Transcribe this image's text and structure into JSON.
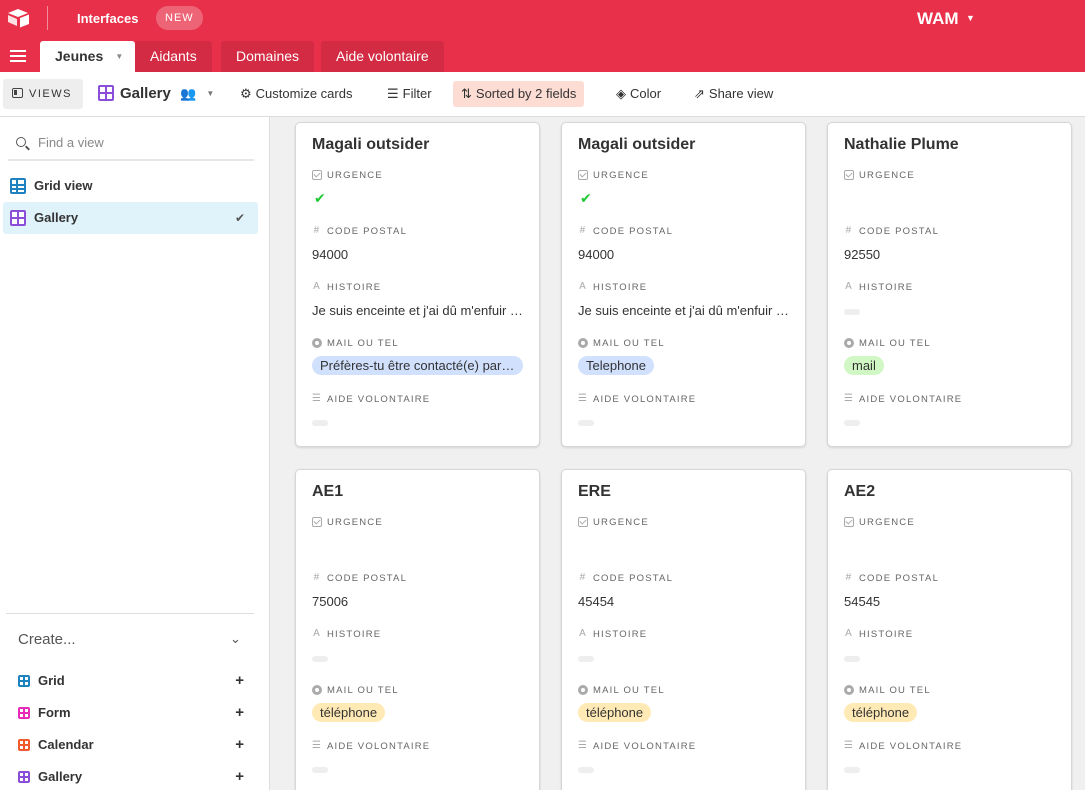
{
  "colors": {
    "brand": "#e8304a",
    "sorted_bg": "#fddcd4",
    "selected_view_bg": "#e0f3fb",
    "pill_blue": "#d0e0fd",
    "pill_green": "#d1f7c4",
    "pill_yellow": "#ffeab6"
  },
  "topbar": {
    "app_label": "Interfaces",
    "new_badge": "NEW",
    "base_name": "WAM"
  },
  "tabs": [
    {
      "label": "Jeunes"
    },
    {
      "label": "Aidants"
    },
    {
      "label": "Domaines"
    },
    {
      "label": "Aide volontaire"
    }
  ],
  "toolbar": {
    "views_label": "VIEWS",
    "current_view": "Gallery",
    "customize": "Customize cards",
    "filter": "Filter",
    "sorted": "Sorted by 2 fields",
    "color": "Color",
    "share": "Share view"
  },
  "sidebar": {
    "find_placeholder": "Find a view",
    "views": [
      {
        "label": "Grid view",
        "icon": "grid-view-icon"
      },
      {
        "label": "Gallery",
        "icon": "gallery-view-icon",
        "selected": true
      }
    ],
    "create_label": "Create...",
    "create_items": [
      {
        "label": "Grid",
        "color": "#1f82c0"
      },
      {
        "label": "Form",
        "color": "#e929ba"
      },
      {
        "label": "Calendar",
        "color": "#f05b2b"
      },
      {
        "label": "Gallery",
        "color": "#8a4ed9"
      }
    ]
  },
  "field_labels": {
    "urgence": "URGENCE",
    "code_postal": "CODE POSTAL",
    "histoire": "HISTOIRE",
    "mail_ou_tel": "MAIL OU TEL",
    "aide_volontaire": "AIDE VOLONTAIRE"
  },
  "cards": [
    {
      "title": "Magali outsider",
      "urgence": true,
      "code_postal": "94000",
      "histoire": "Je suis enceinte et j'ai dû m'enfuir de chez moi",
      "mail_ou_tel": "Préfères-tu être contacté(e) par mail ou par téléphone ?",
      "mail_color": "#d0e0fd"
    },
    {
      "title": "Magali outsider",
      "urgence": true,
      "code_postal": "94000",
      "histoire": "Je suis enceinte et j'ai dû m'enfuir de chez moi",
      "mail_ou_tel": "Telephone",
      "mail_color": "#d0e0fd"
    },
    {
      "title": "Nathalie Plume",
      "urgence": false,
      "code_postal": "92550",
      "histoire": "",
      "mail_ou_tel": "mail",
      "mail_color": "#d1f7c4"
    },
    {
      "title": "AE1",
      "urgence": false,
      "code_postal": "75006",
      "histoire": "",
      "mail_ou_tel": "téléphone",
      "mail_color": "#ffeab6"
    },
    {
      "title": "ERE",
      "urgence": false,
      "code_postal": "45454",
      "histoire": "",
      "mail_ou_tel": "téléphone",
      "mail_color": "#ffeab6"
    },
    {
      "title": "AE2",
      "urgence": false,
      "code_postal": "54545",
      "histoire": "",
      "mail_ou_tel": "téléphone",
      "mail_color": "#ffeab6"
    }
  ]
}
